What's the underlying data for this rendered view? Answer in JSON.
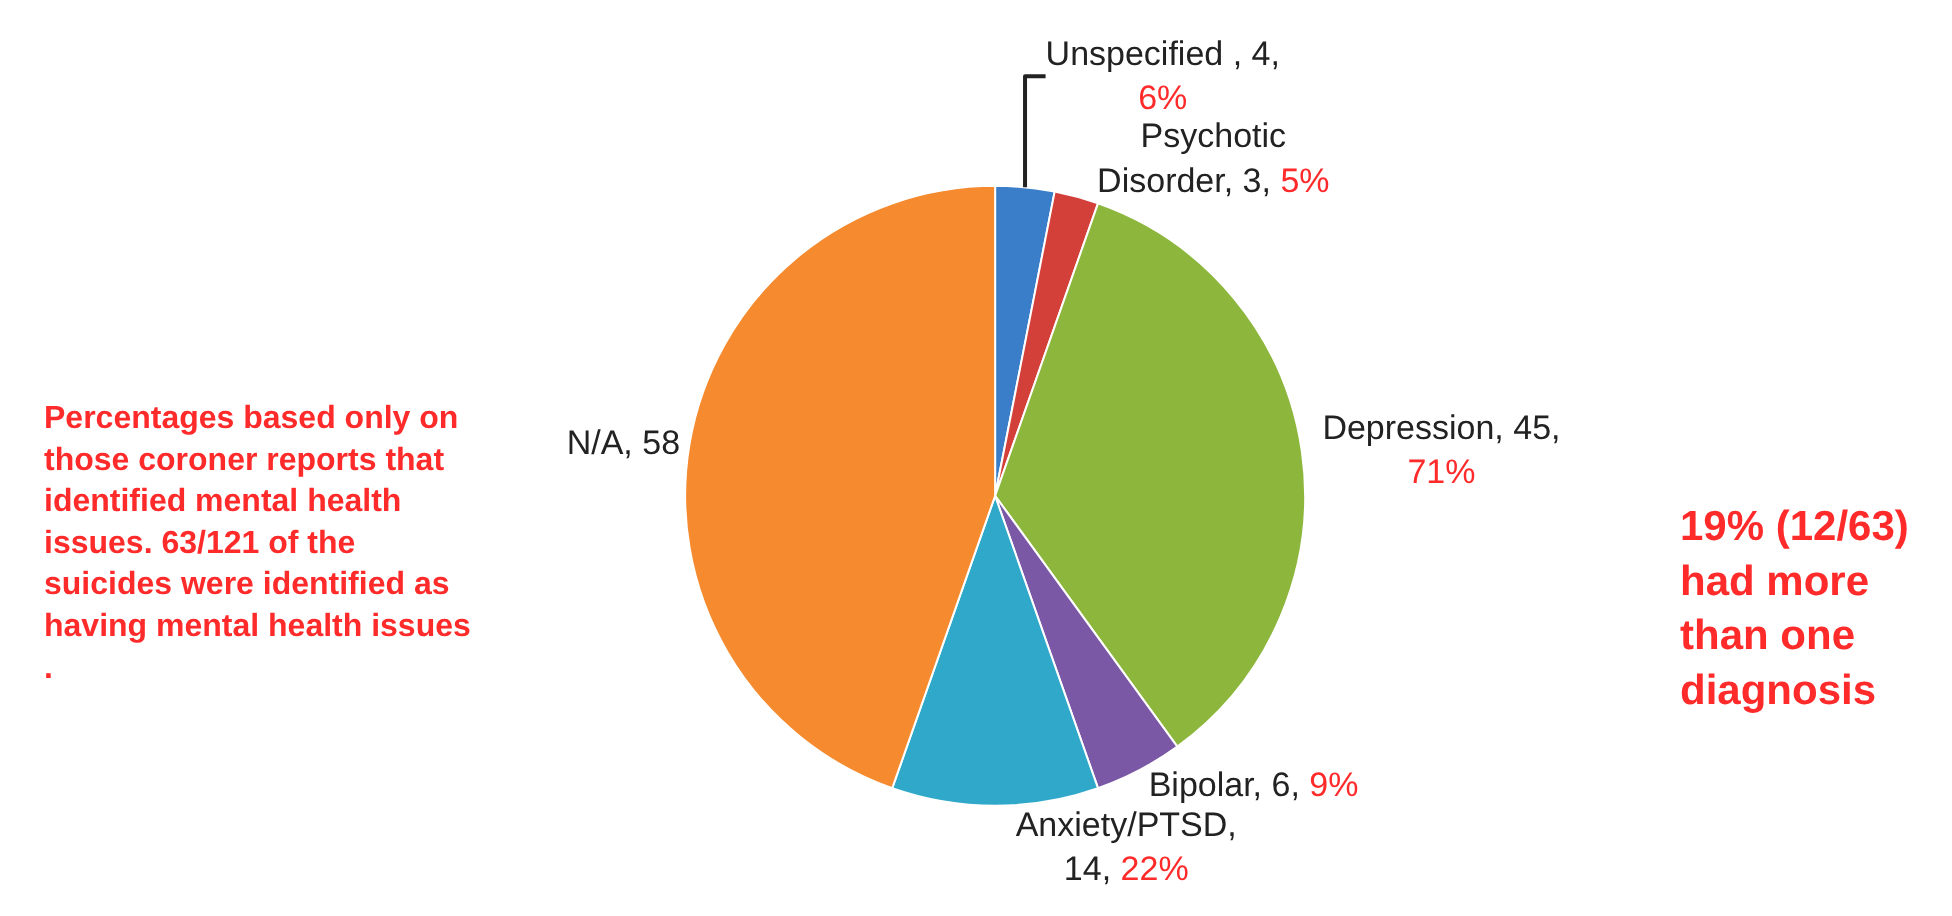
{
  "chart_data": {
    "type": "pie",
    "categories": [
      "Unspecified , 4, 6%",
      "Psychotic Disorder, 3, 5%",
      "Depression, 45, 71%",
      "Bipolar, 6, 9%",
      "Anxiety/PTSD, 14, 22%",
      "N/A, 58"
    ],
    "values": [
      4,
      3,
      45,
      6,
      14,
      58
    ],
    "colors": [
      "#3a7dc9",
      "#d3403a",
      "#8db63c",
      "#7b58a6",
      "#2fa8c9",
      "#f58a2e"
    ],
    "legend": false,
    "annotations": [
      "Percentages based only on those coroner reports that identified mental health issues. 63/121 of the suicides were identified as having mental health issues .",
      "19% (12/63) had more than one diagnosis"
    ]
  }
}
